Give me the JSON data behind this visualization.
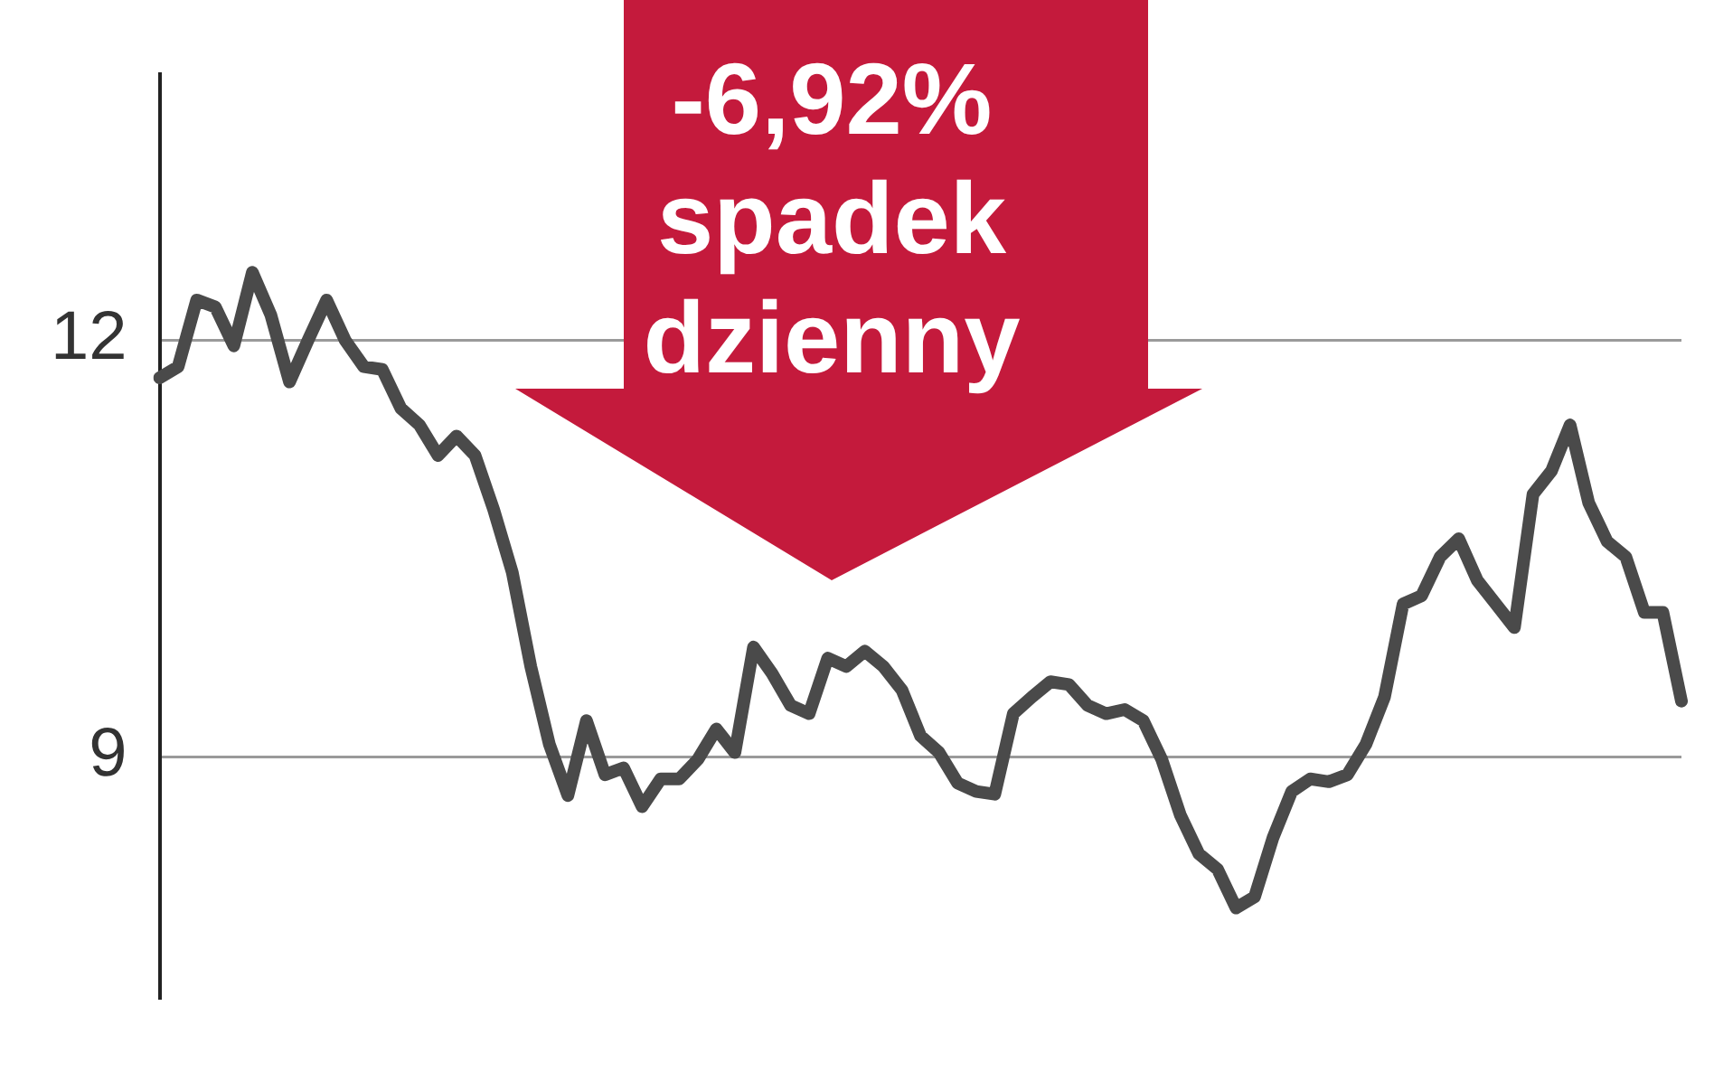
{
  "chart_data": {
    "type": "line",
    "categories": [
      null,
      null,
      null,
      null,
      null,
      null,
      null,
      null,
      null,
      null,
      null,
      null,
      null,
      null,
      null,
      null,
      null,
      null,
      null,
      null,
      null,
      null,
      null,
      null,
      null,
      null,
      null,
      null,
      null,
      null,
      null,
      null,
      null,
      null,
      null,
      null,
      null,
      null,
      null,
      null,
      null,
      null,
      null,
      null,
      null,
      null,
      null,
      null,
      null,
      null,
      null,
      null,
      null,
      null,
      null,
      null,
      null,
      null,
      null,
      null,
      null,
      null,
      null,
      null,
      null,
      null,
      null,
      null,
      null,
      null,
      null,
      null,
      null,
      null,
      null,
      null,
      null,
      null,
      null,
      null,
      null,
      null,
      null
    ],
    "values": [
      11.73,
      11.81,
      12.29,
      12.24,
      11.96,
      12.49,
      12.18,
      11.7,
      12.0,
      12.29,
      12.0,
      11.81,
      11.79,
      11.51,
      11.39,
      11.17,
      11.31,
      11.17,
      10.78,
      10.33,
      9.65,
      9.09,
      8.72,
      9.26,
      8.87,
      8.92,
      8.64,
      8.84,
      8.84,
      8.98,
      9.2,
      9.03,
      9.79,
      9.6,
      9.37,
      9.31,
      9.71,
      9.65,
      9.76,
      9.65,
      9.48,
      9.15,
      9.03,
      8.81,
      8.75,
      8.73,
      9.31,
      9.43,
      9.54,
      9.52,
      9.37,
      9.31,
      9.34,
      9.26,
      8.98,
      8.58,
      8.3,
      8.19,
      7.91,
      7.99,
      8.42,
      8.75,
      8.84,
      8.82,
      8.87,
      9.09,
      9.43,
      10.1,
      10.16,
      10.44,
      10.57,
      10.27,
      10.1,
      9.93,
      10.89,
      11.06,
      11.39,
      10.83,
      10.55,
      10.44,
      10.04,
      10.04,
      9.4
    ],
    "color": "#4a4a4a",
    "ylim": [
      7.26,
      13.92
    ],
    "yticks": [
      9,
      12
    ],
    "grid": "y",
    "tick_labels": "y",
    "marker": "none",
    "annotations": [
      "-6,92% spadek dzienny"
    ]
  }
}
